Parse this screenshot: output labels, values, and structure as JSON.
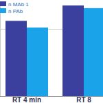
{
  "chart_data": {
    "type": "bar",
    "categories": [
      "RT 4 min",
      "RT 8"
    ],
    "series": [
      {
        "name": "n MAb 1",
        "color": "#3b3f9e",
        "values": [
          112,
          135
        ]
      },
      {
        "name": "n PAb",
        "color": "#1aa3e8",
        "values": [
          102,
          131
        ]
      }
    ],
    "ylim": [
      0,
      140
    ],
    "yticks": [
      0,
      100
    ],
    "grid": true,
    "legend": "upper left",
    "tick_labels": "x"
  }
}
